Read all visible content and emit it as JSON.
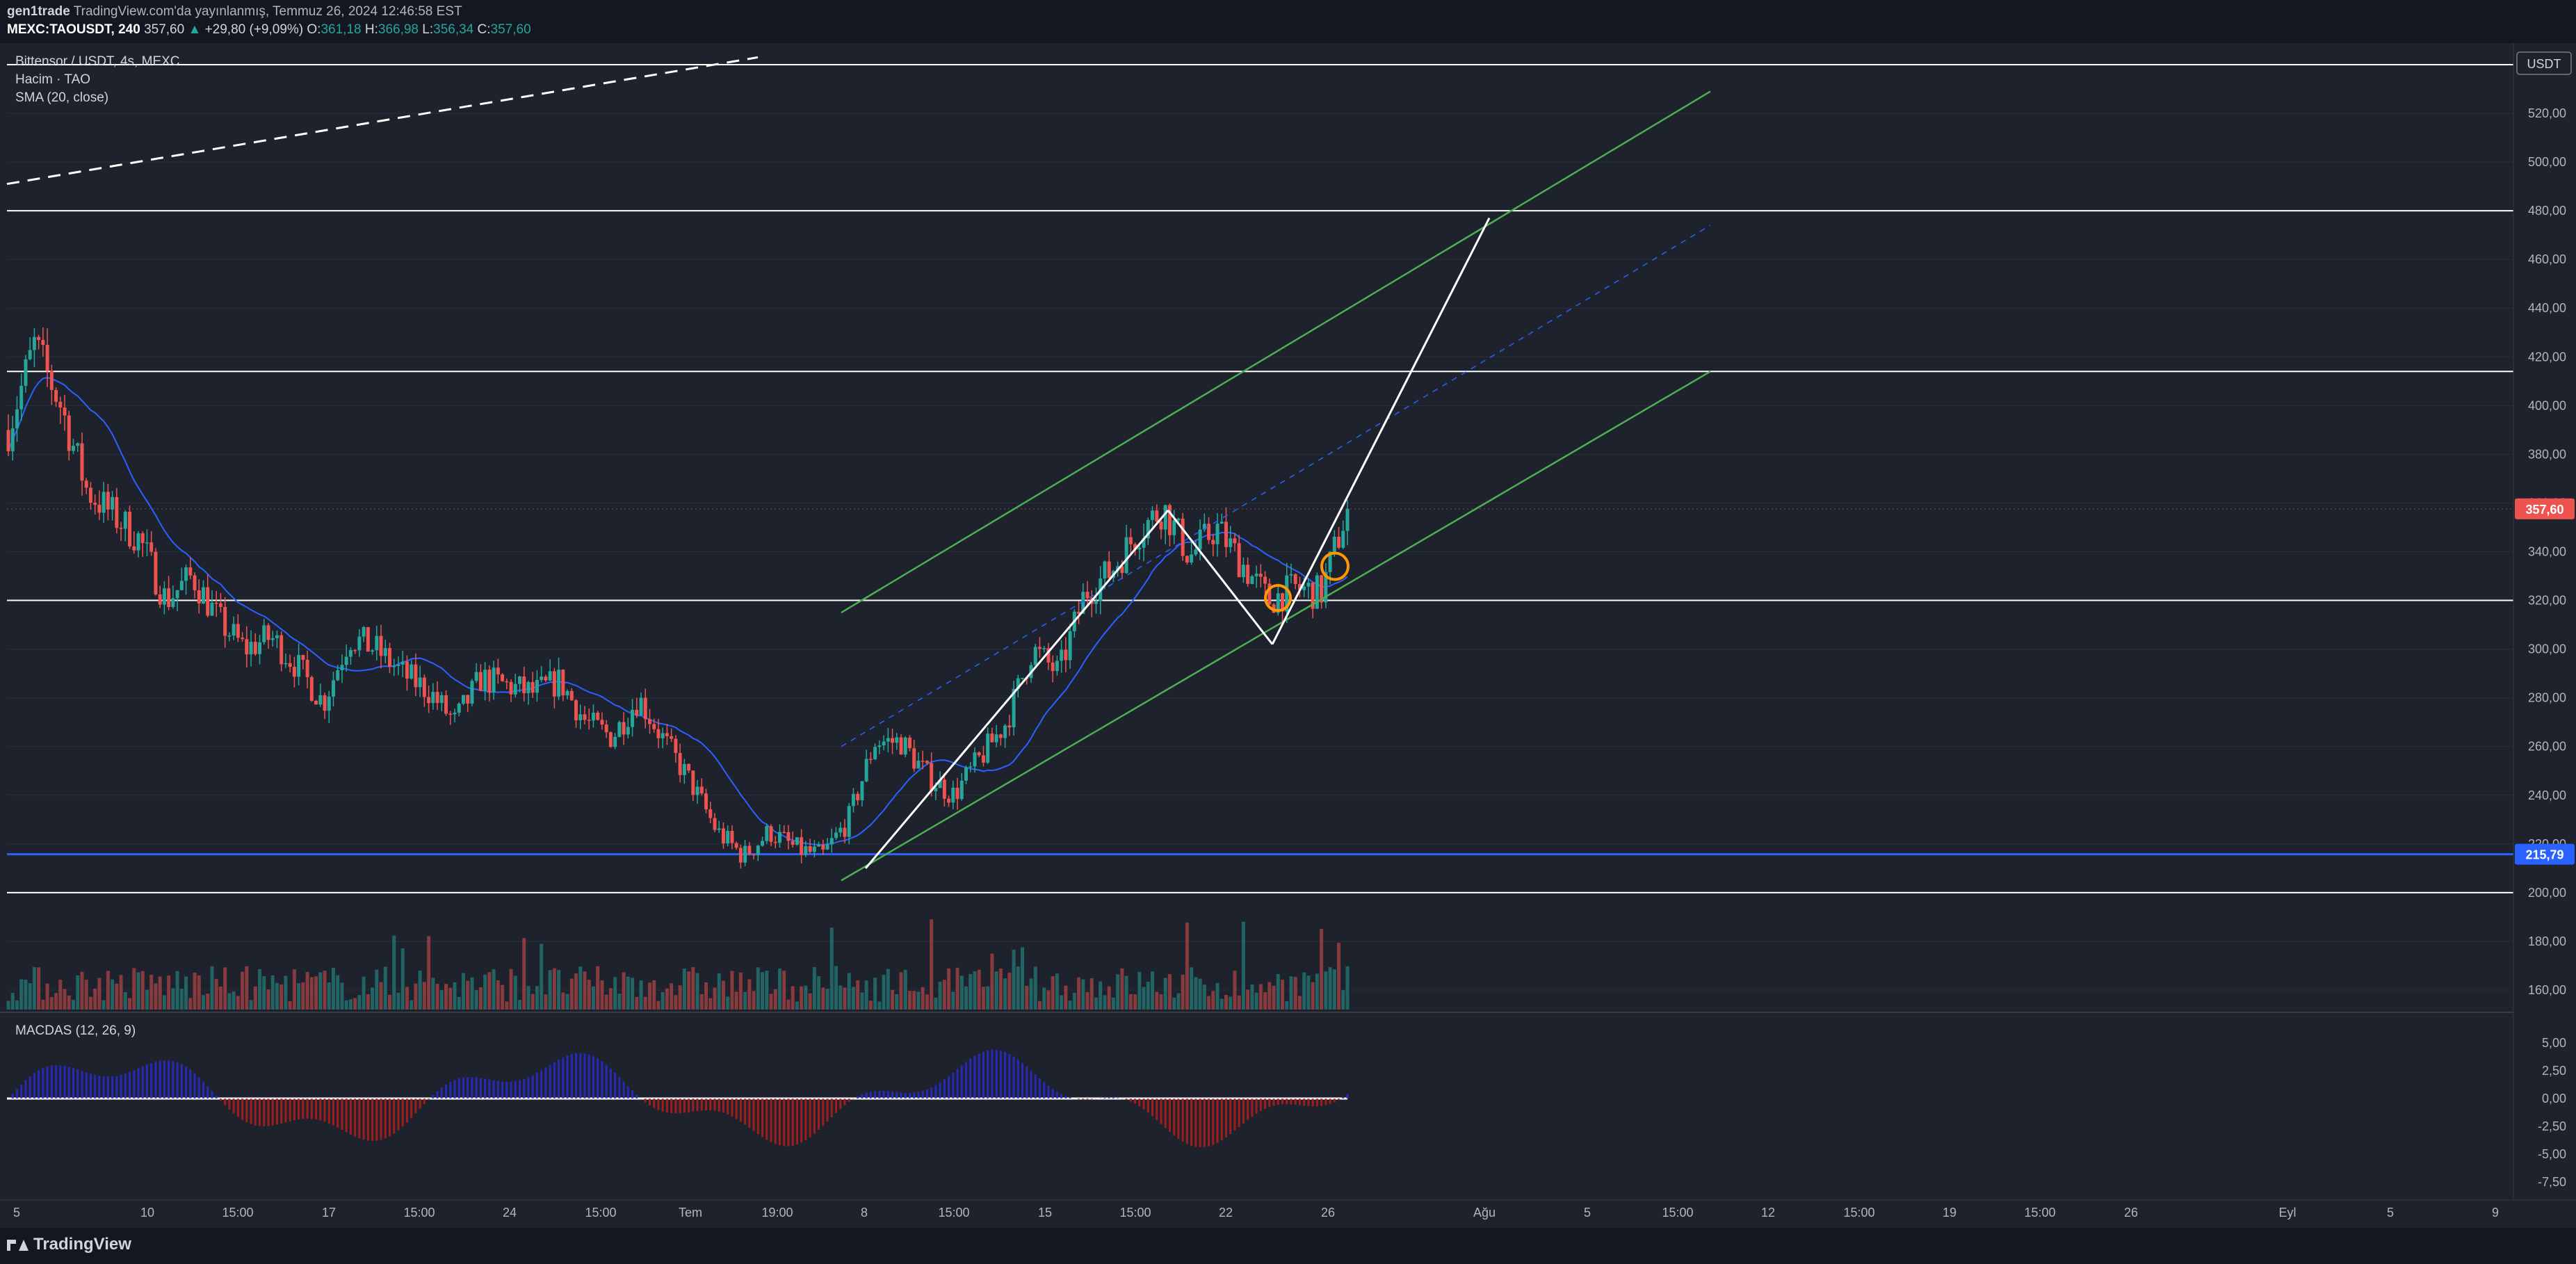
{
  "header": {
    "author": "gen1trade",
    "published": "TradingView.com'da yayınlanmış, Temmuz 26, 2024 12:46:58 EST",
    "symbol": "MEXC:TAOUSDT, 240",
    "last_price": "357,60",
    "change": "+29,80 (+9,09%)",
    "o_label": "O:",
    "o_value": "361,18",
    "h_label": "H:",
    "h_value": "366,98",
    "l_label": "L:",
    "l_value": "356,34",
    "c_label": "C:",
    "c_value": "357,60"
  },
  "legend": {
    "title": "Bittensor / USDT, 4s, MEXC",
    "volume": "Hacim · TAO",
    "sma": "SMA (20, close)",
    "macd": "MACDAS (12, 26, 9)"
  },
  "footer": {
    "brand": "TradingView"
  },
  "colors": {
    "up": "#26a69a",
    "down": "#ef5350",
    "sma": "#2962ff",
    "channel": "#4caf50",
    "level": "#ffffff",
    "support": "#2962ff",
    "highlight": "#ff9800",
    "background": "#1e222d"
  },
  "chart_data": {
    "type": "candlestick",
    "title": "Bittensor / USDT, 4s, MEXC",
    "currency": "USDT",
    "y_ticks": [
      "520,00",
      "500,00",
      "480,00",
      "460,00",
      "440,00",
      "420,00",
      "400,00",
      "380,00",
      "360,00",
      "340,00",
      "320,00",
      "300,00",
      "280,00",
      "260,00",
      "240,00",
      "220,00",
      "200,00",
      "180,00",
      "160,00"
    ],
    "ylim": [
      150,
      545
    ],
    "x_ticks": [
      "5",
      "10",
      "15:00",
      "17",
      "15:00",
      "24",
      "15:00",
      "Tem",
      "19:00",
      "8",
      "15:00",
      "15",
      "15:00",
      "22",
      "26",
      "Ağu",
      "5",
      "15:00",
      "12",
      "15:00",
      "19",
      "15:00",
      "26",
      "Eyl",
      "5",
      "9"
    ],
    "price_label": "357,60",
    "support_label": "215,79",
    "horizontal_levels": [
      540,
      480,
      414,
      320,
      200
    ],
    "support_level": 215.79,
    "close_anchors": [
      [
        "5",
        390
      ],
      [
        "6",
        425
      ],
      [
        "7",
        400
      ],
      [
        "8",
        365
      ],
      [
        "9",
        355
      ],
      [
        "10",
        345
      ],
      [
        "11",
        320
      ],
      [
        "12",
        330
      ],
      [
        "13",
        312
      ],
      [
        "14",
        300
      ],
      [
        "15",
        305
      ],
      [
        "16",
        293
      ],
      [
        "17",
        278
      ],
      [
        "18",
        305
      ],
      [
        "19",
        300
      ],
      [
        "20",
        290
      ],
      [
        "21",
        283
      ],
      [
        "22",
        270
      ],
      [
        "23",
        288
      ],
      [
        "24",
        285
      ],
      [
        "25",
        282
      ],
      [
        "26",
        287
      ],
      [
        "27",
        270
      ],
      [
        "28",
        264
      ],
      [
        "29",
        280
      ],
      [
        "30",
        262
      ],
      [
        "Tem",
        245
      ],
      [
        "2",
        225
      ],
      [
        "3",
        215
      ],
      [
        "4",
        225
      ],
      [
        "5b",
        218
      ],
      [
        "6b",
        215
      ],
      [
        "7b",
        230
      ],
      [
        "8",
        262
      ],
      [
        "9b",
        262
      ],
      [
        "10b",
        248
      ],
      [
        "11b",
        240
      ],
      [
        "12b",
        255
      ],
      [
        "13b",
        270
      ],
      [
        "14b",
        300
      ],
      [
        "15",
        290
      ],
      [
        "16b",
        323
      ],
      [
        "17b",
        332
      ],
      [
        "18b",
        348
      ],
      [
        "19b",
        358
      ],
      [
        "20b",
        338
      ],
      [
        "21b",
        350
      ],
      [
        "22",
        335
      ],
      [
        "23b",
        320
      ],
      [
        "24b",
        325
      ],
      [
        "25b",
        323
      ],
      [
        "26",
        357.6
      ]
    ],
    "volume_ylim": [
      0,
      140
    ],
    "macd": {
      "ticks": [
        "5,00",
        "2,50",
        "0,00",
        "-2,50",
        "-5,00",
        "-7,50"
      ],
      "ylim": [
        -8.5,
        6.5
      ]
    },
    "annotations": [
      {
        "type": "parallel_channel",
        "color": "green"
      },
      {
        "type": "zigzag_pattern",
        "color": "white"
      },
      {
        "type": "dashed_trendline",
        "color": "white"
      },
      {
        "type": "circle_markers",
        "color": "orange",
        "count": 2
      }
    ]
  }
}
